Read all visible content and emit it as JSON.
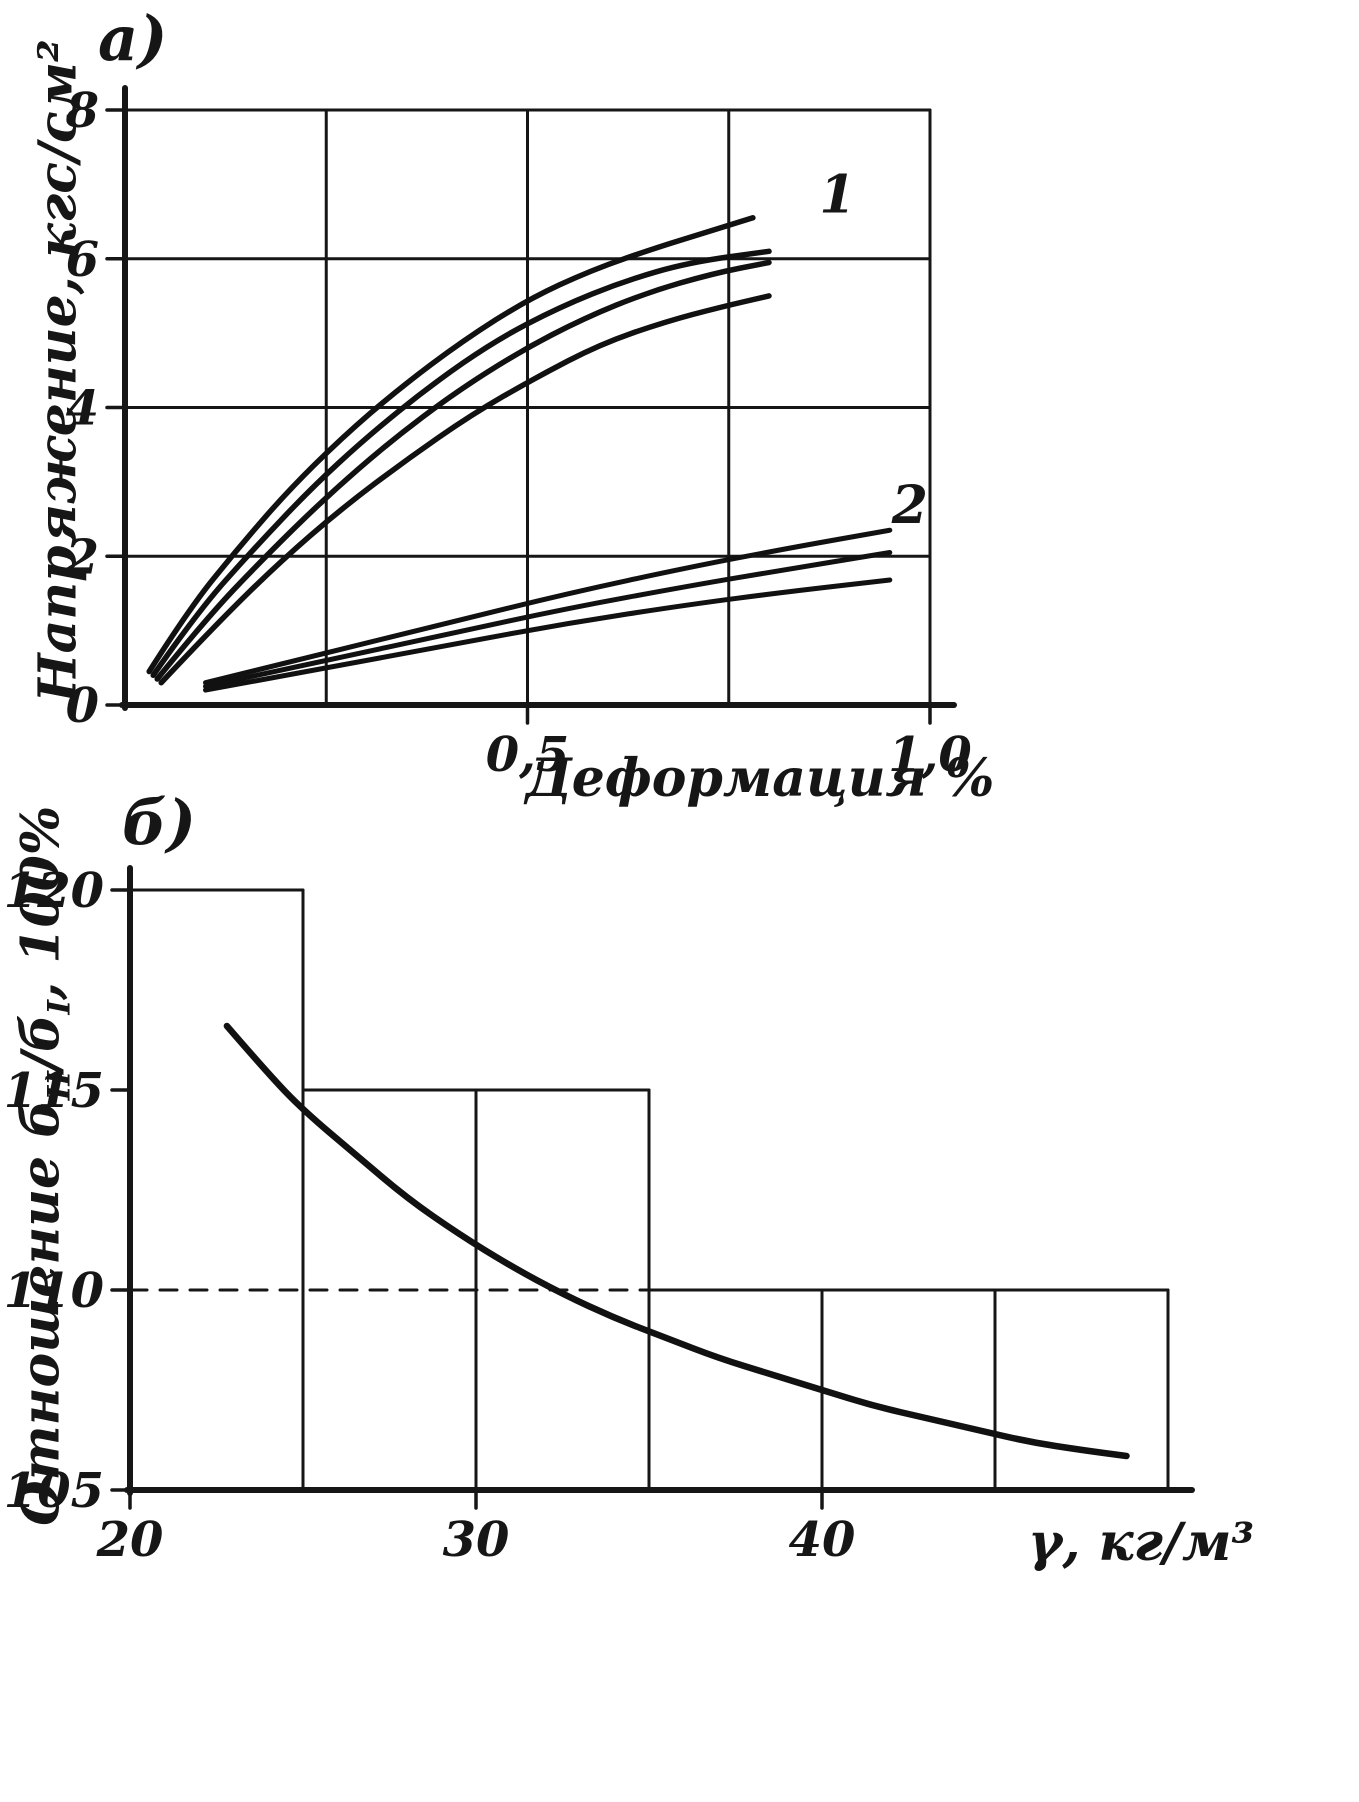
{
  "page": {
    "panel_a_label": "а)",
    "panel_b_label": "б)"
  },
  "chart_data": [
    {
      "type": "line",
      "panel": "а",
      "title": "",
      "xlabel": "Деформация %",
      "ylabel": "Напряжение, кгс/см²",
      "xlim": [
        0,
        1.0
      ],
      "ylim": [
        0,
        8
      ],
      "grid_on": true,
      "x_ticks": [
        {
          "v": 0.5,
          "label": "0,5"
        },
        {
          "v": 1.0,
          "label": "1,0"
        }
      ],
      "y_ticks": [
        {
          "v": 0,
          "label": "0"
        },
        {
          "v": 2,
          "label": "2"
        },
        {
          "v": 4,
          "label": "4"
        },
        {
          "v": 6,
          "label": "6"
        },
        {
          "v": 8,
          "label": "8"
        }
      ],
      "grid": [
        {
          "x1": 0.25,
          "y1": 0,
          "x2": 0.25,
          "y2": 8
        },
        {
          "x1": 0.5,
          "y1": 0,
          "x2": 0.5,
          "y2": 8
        },
        {
          "x1": 0.75,
          "y1": 0,
          "x2": 0.75,
          "y2": 8
        },
        {
          "x1": 1.0,
          "y1": 0,
          "x2": 1.0,
          "y2": 8
        },
        {
          "x1": 0,
          "y1": 2,
          "x2": 1.0,
          "y2": 2
        },
        {
          "x1": 0,
          "y1": 4,
          "x2": 1.0,
          "y2": 4
        },
        {
          "x1": 0,
          "y1": 6,
          "x2": 1.0,
          "y2": 6
        },
        {
          "x1": 0,
          "y1": 8,
          "x2": 1.0,
          "y2": 8
        }
      ],
      "series": [
        {
          "name": "group1-curve-1",
          "group": "1",
          "width": 5.5,
          "points": [
            [
              0.03,
              0.45
            ],
            [
              0.08,
              1.3
            ],
            [
              0.14,
              2.1
            ],
            [
              0.2,
              2.85
            ],
            [
              0.27,
              3.6
            ],
            [
              0.34,
              4.25
            ],
            [
              0.42,
              4.9
            ],
            [
              0.5,
              5.45
            ],
            [
              0.58,
              5.85
            ],
            [
              0.66,
              6.15
            ],
            [
              0.72,
              6.35
            ],
            [
              0.78,
              6.55
            ]
          ]
        },
        {
          "name": "group1-curve-2",
          "group": "1",
          "width": 5.5,
          "points": [
            [
              0.035,
              0.4
            ],
            [
              0.09,
              1.25
            ],
            [
              0.16,
              2.1
            ],
            [
              0.23,
              2.9
            ],
            [
              0.3,
              3.6
            ],
            [
              0.38,
              4.3
            ],
            [
              0.46,
              4.9
            ],
            [
              0.54,
              5.35
            ],
            [
              0.62,
              5.7
            ],
            [
              0.7,
              5.95
            ],
            [
              0.8,
              6.1
            ]
          ]
        },
        {
          "name": "group1-curve-3",
          "group": "1",
          "width": 5.5,
          "points": [
            [
              0.04,
              0.35
            ],
            [
              0.1,
              1.15
            ],
            [
              0.17,
              1.95
            ],
            [
              0.25,
              2.8
            ],
            [
              0.33,
              3.55
            ],
            [
              0.41,
              4.2
            ],
            [
              0.49,
              4.75
            ],
            [
              0.57,
              5.2
            ],
            [
              0.65,
              5.55
            ],
            [
              0.73,
              5.8
            ],
            [
              0.8,
              5.95
            ]
          ]
        },
        {
          "name": "group1-curve-4",
          "group": "1",
          "width": 5.5,
          "points": [
            [
              0.045,
              0.3
            ],
            [
              0.11,
              1.05
            ],
            [
              0.19,
              1.9
            ],
            [
              0.27,
              2.65
            ],
            [
              0.35,
              3.3
            ],
            [
              0.43,
              3.9
            ],
            [
              0.51,
              4.4
            ],
            [
              0.59,
              4.85
            ],
            [
              0.67,
              5.15
            ],
            [
              0.74,
              5.35
            ],
            [
              0.8,
              5.5
            ]
          ]
        },
        {
          "name": "group2-line-1",
          "group": "2",
          "width": 5,
          "points": [
            [
              0.1,
              0.3
            ],
            [
              0.25,
              0.7
            ],
            [
              0.4,
              1.1
            ],
            [
              0.55,
              1.5
            ],
            [
              0.7,
              1.85
            ],
            [
              0.82,
              2.1
            ],
            [
              0.95,
              2.35
            ]
          ]
        },
        {
          "name": "group2-line-2",
          "group": "2",
          "width": 5,
          "points": [
            [
              0.1,
              0.25
            ],
            [
              0.25,
              0.6
            ],
            [
              0.4,
              0.95
            ],
            [
              0.55,
              1.3
            ],
            [
              0.7,
              1.6
            ],
            [
              0.82,
              1.82
            ],
            [
              0.95,
              2.05
            ]
          ]
        },
        {
          "name": "group2-line-3",
          "group": "2",
          "width": 5,
          "points": [
            [
              0.1,
              0.2
            ],
            [
              0.25,
              0.5
            ],
            [
              0.4,
              0.8
            ],
            [
              0.55,
              1.1
            ],
            [
              0.7,
              1.35
            ],
            [
              0.82,
              1.52
            ],
            [
              0.95,
              1.68
            ]
          ]
        }
      ],
      "annotations": [
        {
          "text": "1",
          "x": 0.885,
          "y": 6.62
        },
        {
          "text": "2",
          "x": 0.975,
          "y": 2.45
        }
      ]
    },
    {
      "type": "line",
      "panel": "б",
      "title": "",
      "xlabel": "γ, кг/м³",
      "ylabel": "Отношение бII/бI, 100%",
      "ylabel_parts": {
        "prefix": "Отношение б",
        "sub1": "II",
        "mid": "/б",
        "sub2": "I",
        "suffix": ", 100%"
      },
      "xlim": [
        20,
        50
      ],
      "ylim": [
        105,
        120
      ],
      "grid_on": true,
      "x_ticks": [
        {
          "v": 20,
          "label": "20"
        },
        {
          "v": 30,
          "label": "30"
        },
        {
          "v": 40,
          "label": "40"
        }
      ],
      "y_ticks": [
        {
          "v": 105,
          "label": "105"
        },
        {
          "v": 110,
          "label": "110"
        },
        {
          "v": 115,
          "label": "115"
        },
        {
          "v": 120,
          "label": "120"
        }
      ],
      "grid": [
        {
          "x1": 25,
          "y1": 105,
          "x2": 25,
          "y2": 120
        },
        {
          "x1": 30,
          "y1": 105,
          "x2": 30,
          "y2": 115
        },
        {
          "x1": 35,
          "y1": 105,
          "x2": 35,
          "y2": 115
        },
        {
          "x1": 40,
          "y1": 105,
          "x2": 40,
          "y2": 110
        },
        {
          "x1": 45,
          "y1": 105,
          "x2": 45,
          "y2": 110
        },
        {
          "x1": 50,
          "y1": 105,
          "x2": 50,
          "y2": 110
        },
        {
          "x1": 20,
          "y1": 120,
          "x2": 25,
          "y2": 120
        },
        {
          "x1": 25,
          "y1": 115,
          "x2": 35,
          "y2": 115
        },
        {
          "x1": 35,
          "y1": 110,
          "x2": 50,
          "y2": 110
        },
        {
          "x1": 20,
          "y1": 110,
          "x2": 35,
          "y2": 110,
          "dash": true
        }
      ],
      "series": [
        {
          "name": "ratio-curve",
          "width": 6.5,
          "points": [
            [
              22.8,
              116.6
            ],
            [
              24,
              115.4
            ],
            [
              25,
              114.5
            ],
            [
              26.5,
              113.4
            ],
            [
              28,
              112.3
            ],
            [
              29.5,
              111.4
            ],
            [
              31,
              110.6
            ],
            [
              32.5,
              109.9
            ],
            [
              34,
              109.3
            ],
            [
              35.5,
              108.8
            ],
            [
              37,
              108.3
            ],
            [
              38.5,
              107.9
            ],
            [
              40,
              107.5
            ],
            [
              41.5,
              107.1
            ],
            [
              43,
              106.8
            ],
            [
              44.5,
              106.5
            ],
            [
              46,
              106.2
            ],
            [
              47.5,
              106.0
            ],
            [
              48.8,
              105.85
            ]
          ]
        }
      ],
      "annotations": []
    }
  ]
}
